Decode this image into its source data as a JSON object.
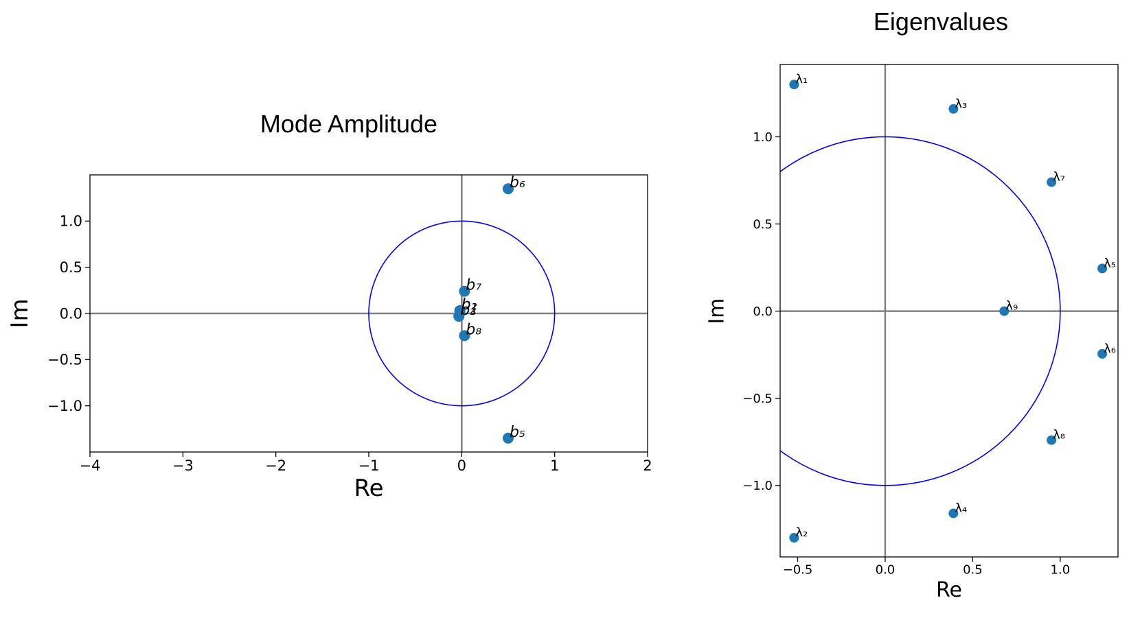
{
  "chart_data": [
    {
      "type": "scatter",
      "title": "Mode Amplitude",
      "x_label": "Re",
      "y_label": "Im",
      "color": "#1f77b4",
      "circle_color": "#0000ff",
      "axis_line_color": "#808080",
      "x": [
        -0.02,
        -0.02,
        -0.03,
        -0.03,
        0.5,
        0.5,
        0.03,
        0.03
      ],
      "y": [
        0.03,
        0.03,
        -0.03,
        -0.03,
        -1.35,
        1.35,
        0.24,
        -0.24
      ],
      "labels": [
        "b₁",
        "b₂",
        "b₃",
        "b₄",
        "b₅",
        "b₆",
        "b₇",
        "b₈"
      ],
      "xlim": [
        -4,
        2
      ],
      "ylim": [
        -1.5,
        1.5
      ],
      "xticks": [
        {
          "value": -4,
          "label": "−4"
        },
        {
          "value": -3,
          "label": "−3"
        },
        {
          "value": -2,
          "label": "−2"
        },
        {
          "value": -1,
          "label": "−1"
        },
        0,
        1,
        2
      ],
      "yticks": [
        {
          "value": -1.0,
          "label": "−1.0"
        },
        {
          "value": -0.5,
          "label": "−0.5"
        },
        {
          "value": 0.0,
          "label": "0.0"
        },
        0.5,
        {
          "value": 1.0,
          "label": "1.0"
        }
      ]
    },
    {
      "type": "scatter",
      "title": "Eigenvalues",
      "x_label": "Re",
      "y_label": "Im",
      "color": "#1f77b4",
      "circle_color": "#0000ff",
      "axis_line_color": "#808080",
      "x": [
        -0.52,
        -0.52,
        0.39,
        0.39,
        1.24,
        1.24,
        0.95,
        0.95,
        0.68
      ],
      "y": [
        1.3,
        -1.3,
        1.16,
        -1.16,
        0.245,
        -0.245,
        0.74,
        -0.74,
        0.0
      ],
      "labels": [
        "λ₁",
        "λ₂",
        "λ₃",
        "λ₄",
        "λ₅",
        "λ₆",
        "λ₇",
        "λ₈",
        "λ₉"
      ],
      "xlim": [
        -0.6,
        1.33
      ],
      "ylim": [
        -1.41,
        1.415
      ],
      "xticks": [
        {
          "value": -0.5,
          "label": "−0.5"
        },
        {
          "value": 0.0,
          "label": "0.0"
        },
        0.5,
        {
          "value": 1.0,
          "label": "1.0"
        }
      ],
      "yticks": [
        {
          "value": -1.0,
          "label": "−1.0"
        },
        {
          "value": -0.5,
          "label": "−0.5"
        },
        {
          "value": 0.0,
          "label": "0.0"
        },
        0.5,
        {
          "value": 1.0,
          "label": "1.0"
        }
      ]
    }
  ]
}
